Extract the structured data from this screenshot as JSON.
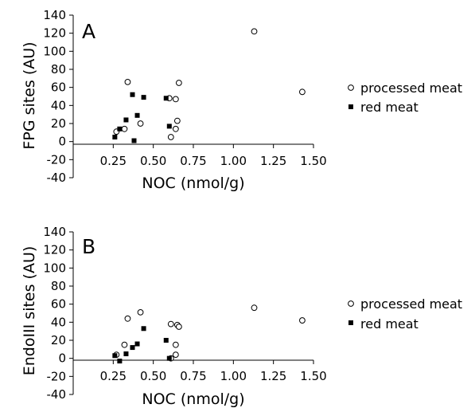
{
  "chart_data": [
    {
      "type": "scatter",
      "panel_label": "A",
      "xlabel": "NOC (nmol/g)",
      "ylabel": "FPG sites (AU)",
      "xlim": [
        0,
        1.5
      ],
      "ylim": [
        -40,
        140
      ],
      "x_ticks": [
        "0.25",
        "0.50",
        "0.75",
        "1.00",
        "1.25",
        "1.50"
      ],
      "y_ticks": [
        "140",
        "120",
        "100",
        "80",
        "60",
        "40",
        "20",
        "0",
        "-20",
        "-40"
      ],
      "grid": false,
      "legend_position": "right",
      "series": [
        {
          "name": "processed meat",
          "marker": "open-circle",
          "color": "#000000",
          "points": [
            [
              0.27,
              11
            ],
            [
              0.32,
              14
            ],
            [
              0.34,
              66
            ],
            [
              0.42,
              20
            ],
            [
              0.6,
              48
            ],
            [
              0.61,
              5
            ],
            [
              0.64,
              14
            ],
            [
              0.64,
              47
            ],
            [
              0.65,
              23
            ],
            [
              0.66,
              65
            ],
            [
              1.13,
              122
            ],
            [
              1.43,
              55
            ]
          ]
        },
        {
          "name": "red meat",
          "marker": "filled-square",
          "color": "#000000",
          "points": [
            [
              0.26,
              5
            ],
            [
              0.29,
              14
            ],
            [
              0.33,
              24
            ],
            [
              0.37,
              52
            ],
            [
              0.38,
              1
            ],
            [
              0.4,
              29
            ],
            [
              0.44,
              49
            ],
            [
              0.58,
              48
            ],
            [
              0.6,
              17
            ]
          ]
        }
      ]
    },
    {
      "type": "scatter",
      "panel_label": "B",
      "xlabel": "NOC (nmol/g)",
      "ylabel": "EndoIII sites (AU)",
      "xlim": [
        0,
        1.5
      ],
      "ylim": [
        -40,
        140
      ],
      "x_ticks": [
        "0.25",
        "0.50",
        "0.75",
        "1.00",
        "1.25",
        "1.50"
      ],
      "y_ticks": [
        "140",
        "120",
        "100",
        "80",
        "60",
        "40",
        "20",
        "0",
        "-20",
        "-40"
      ],
      "grid": false,
      "legend_position": "right",
      "series": [
        {
          "name": "processed meat",
          "marker": "open-circle",
          "color": "#000000",
          "points": [
            [
              0.27,
              4
            ],
            [
              0.32,
              15
            ],
            [
              0.34,
              44
            ],
            [
              0.42,
              51
            ],
            [
              0.61,
              38
            ],
            [
              0.61,
              0
            ],
            [
              0.64,
              4
            ],
            [
              0.64,
              15
            ],
            [
              0.65,
              37
            ],
            [
              0.66,
              35
            ],
            [
              1.13,
              56
            ],
            [
              1.43,
              42
            ]
          ]
        },
        {
          "name": "red meat",
          "marker": "filled-square",
          "color": "#000000",
          "points": [
            [
              0.26,
              3
            ],
            [
              0.29,
              -3
            ],
            [
              0.33,
              5
            ],
            [
              0.37,
              12
            ],
            [
              0.4,
              16
            ],
            [
              0.44,
              33
            ],
            [
              0.58,
              20
            ],
            [
              0.6,
              0
            ]
          ]
        }
      ]
    }
  ]
}
